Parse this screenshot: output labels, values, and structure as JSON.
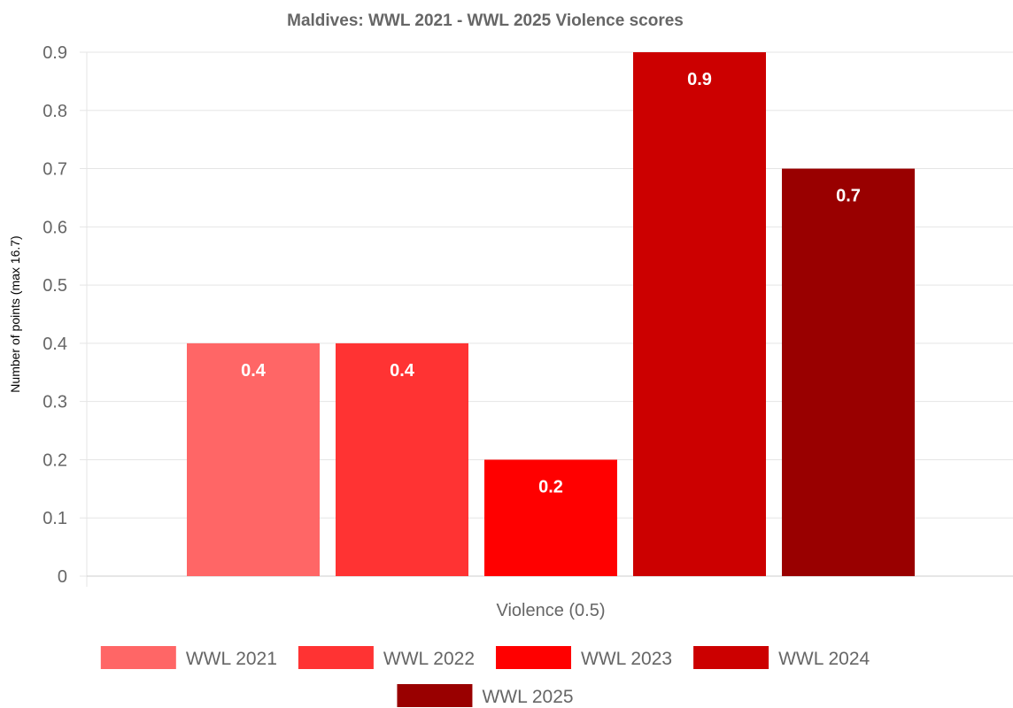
{
  "chart_data": {
    "type": "bar",
    "title": "Maldives: WWL 2021 - WWL 2025 Violence scores",
    "xlabel": "Violence (0.5)",
    "ylabel": "Number of points (max 16.7)",
    "categories": [
      "Violence (0.5)"
    ],
    "ylim": [
      0,
      0.9
    ],
    "yticks": [
      "0",
      "0.1",
      "0.2",
      "0.3",
      "0.4",
      "0.5",
      "0.6",
      "0.7",
      "0.8",
      "0.9"
    ],
    "grid": true,
    "legend_position": "bottom",
    "series": [
      {
        "name": "WWL 2021",
        "values": [
          0.4
        ],
        "color": "#ff6666",
        "label": "0.4"
      },
      {
        "name": "WWL 2022",
        "values": [
          0.4
        ],
        "color": "#ff3333",
        "label": "0.4"
      },
      {
        "name": "WWL 2023",
        "values": [
          0.2
        ],
        "color": "#ff0000",
        "label": "0.2"
      },
      {
        "name": "WWL 2024",
        "values": [
          0.9
        ],
        "color": "#cc0000",
        "label": "0.9"
      },
      {
        "name": "WWL 2025",
        "values": [
          0.7
        ],
        "color": "#990000",
        "label": "0.7"
      }
    ]
  }
}
